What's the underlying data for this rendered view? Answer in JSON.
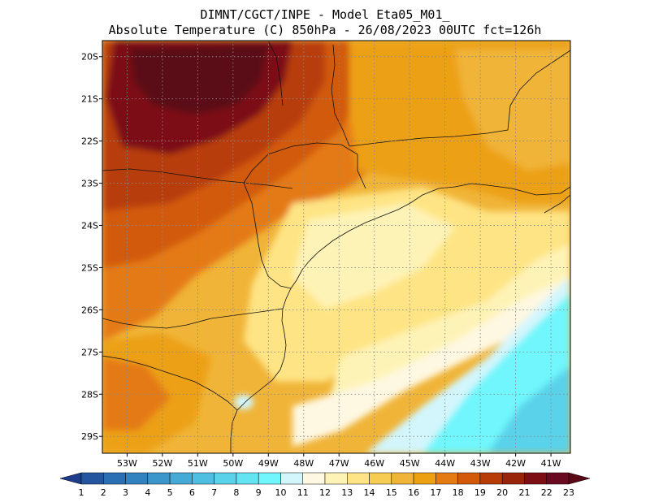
{
  "header": {
    "line1": "DIMNT/CGCT/INPE -  Model Eta05_M01_",
    "line2": "Absolute Temperature (C) 850hPa -  26/08/2023 00UTC fct=126h"
  },
  "map": {
    "lat_labels": [
      "20S",
      "21S",
      "22S",
      "23S",
      "24S",
      "25S",
      "26S",
      "27S",
      "28S",
      "29S"
    ],
    "lon_labels": [
      "53W",
      "52W",
      "51W",
      "50W",
      "49W",
      "48W",
      "47W",
      "46W",
      "45W",
      "44W",
      "43W",
      "42W",
      "41W"
    ],
    "lat_values": [
      -20,
      -21,
      -22,
      -23,
      -24,
      -25,
      -26,
      -27,
      -28,
      -29
    ],
    "lon_values": [
      -53,
      -52,
      -51,
      -50,
      -49,
      -48,
      -47,
      -46,
      -45,
      -44,
      -43,
      -42,
      -41
    ]
  },
  "colorbar": {
    "labels": [
      "1",
      "2",
      "3",
      "4",
      "5",
      "6",
      "7",
      "8",
      "9",
      "10",
      "11",
      "12",
      "13",
      "14",
      "15",
      "16",
      "17",
      "18",
      "19",
      "20",
      "21",
      "22",
      "23"
    ],
    "colors": [
      "#1e3c8c",
      "#2456a0",
      "#2a6eb4",
      "#3282c0",
      "#3c96cc",
      "#46aad6",
      "#4ebfe0",
      "#5ad2ea",
      "#62e4f2",
      "#70f6fc",
      "#d2f6fc",
      "#fef8e2",
      "#fef3b6",
      "#fee484",
      "#f6cc52",
      "#f0b438",
      "#eca012",
      "#e47a12",
      "#d25a0a",
      "#b83c08",
      "#98240a",
      "#7c0e14",
      "#6a0a20",
      "#5a0814"
    ],
    "unit": "C"
  }
}
